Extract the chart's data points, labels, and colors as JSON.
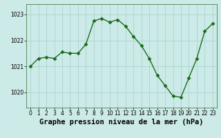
{
  "x": [
    0,
    1,
    2,
    3,
    4,
    5,
    6,
    7,
    8,
    9,
    10,
    11,
    12,
    13,
    14,
    15,
    16,
    17,
    18,
    19,
    20,
    21,
    22,
    23
  ],
  "y": [
    1021.0,
    1021.3,
    1021.35,
    1021.3,
    1021.55,
    1021.5,
    1021.5,
    1021.85,
    1022.75,
    1022.85,
    1022.7,
    1022.8,
    1022.55,
    1022.15,
    1021.8,
    1021.3,
    1020.65,
    1020.25,
    1019.85,
    1019.8,
    1020.55,
    1021.3,
    1022.35,
    1022.65
  ],
  "line_color": "#1a6b1a",
  "marker_color": "#1a6b1a",
  "bg_color": "#cceae7",
  "grid_color": "#aad4d0",
  "xlabel": "Graphe pression niveau de la mer (hPa)",
  "xlabel_fontsize": 7.5,
  "ytick_labels": [
    "1020",
    "1021",
    "1022",
    "1023"
  ],
  "yticks": [
    1020,
    1021,
    1022,
    1023
  ],
  "xticks": [
    0,
    1,
    2,
    3,
    4,
    5,
    6,
    7,
    8,
    9,
    10,
    11,
    12,
    13,
    14,
    15,
    16,
    17,
    18,
    19,
    20,
    21,
    22,
    23
  ],
  "ylim": [
    1019.4,
    1023.4
  ],
  "xlim": [
    -0.5,
    23.5
  ],
  "tick_fontsize": 5.5,
  "marker_size": 2.5,
  "line_width": 1.0
}
